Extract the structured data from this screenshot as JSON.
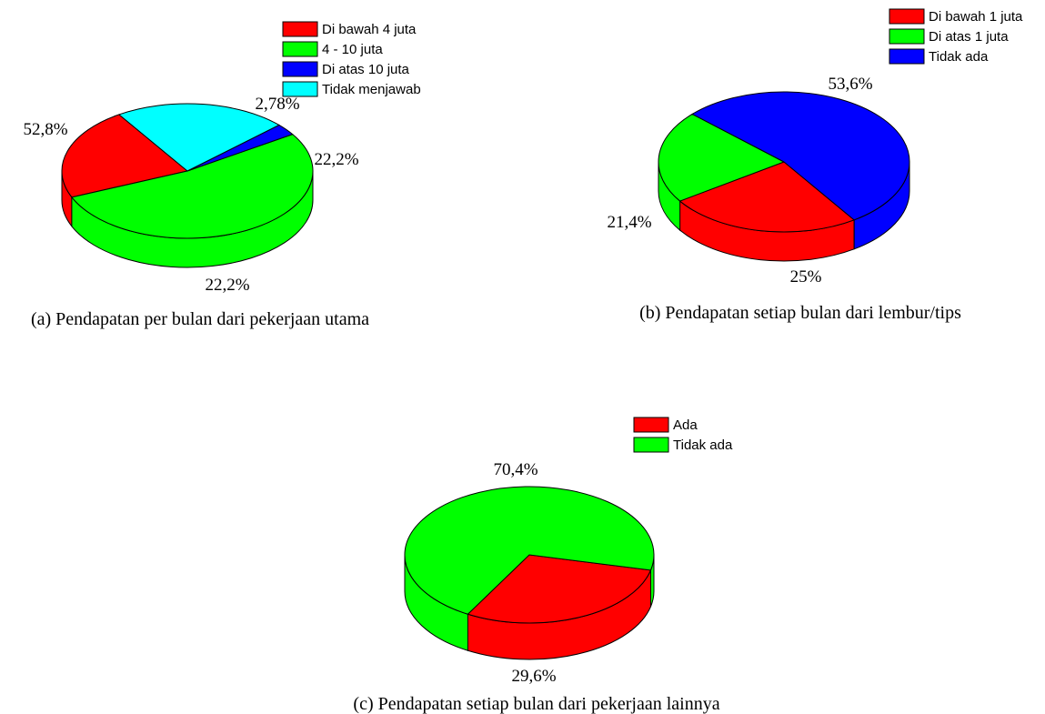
{
  "chart_data": [
    {
      "type": "pie",
      "title": "(a) Pendapatan per bulan dari pekerjaan utama",
      "legend_position": "top-right",
      "slices": [
        {
          "label": "Di bawah 4 juta",
          "value": 22.2,
          "value_label": "22,2%",
          "color": "#ff0000"
        },
        {
          "label": "4 - 10 juta",
          "value": 52.8,
          "value_label": "52,8%",
          "color": "#00ff00"
        },
        {
          "label": "Di atas 10 juta",
          "value": 2.78,
          "value_label": "2,78%",
          "color": "#0000ff"
        },
        {
          "label": "Tidak menjawab",
          "value": 22.2,
          "value_label": "22,2%",
          "color": "#00ffff"
        }
      ]
    },
    {
      "type": "pie",
      "title": "(b) Pendapatan setiap bulan dari lembur/tips",
      "legend_position": "top-right",
      "slices": [
        {
          "label": "Di bawah 1 juta",
          "value": 25,
          "value_label": "25%",
          "color": "#ff0000"
        },
        {
          "label": "Di atas 1 juta",
          "value": 21.4,
          "value_label": "21,4%",
          "color": "#00ff00"
        },
        {
          "label": "Tidak ada",
          "value": 53.6,
          "value_label": "53,6%",
          "color": "#0000ff"
        }
      ]
    },
    {
      "type": "pie",
      "title": "(c) Pendapatan setiap bulan dari pekerjaan lainnya",
      "legend_position": "top-right",
      "slices": [
        {
          "label": "Ada",
          "value": 29.6,
          "value_label": "29,6%",
          "color": "#ff0000"
        },
        {
          "label": "Tidak ada",
          "value": 70.4,
          "value_label": "70,4%",
          "color": "#00ff00"
        }
      ]
    }
  ]
}
